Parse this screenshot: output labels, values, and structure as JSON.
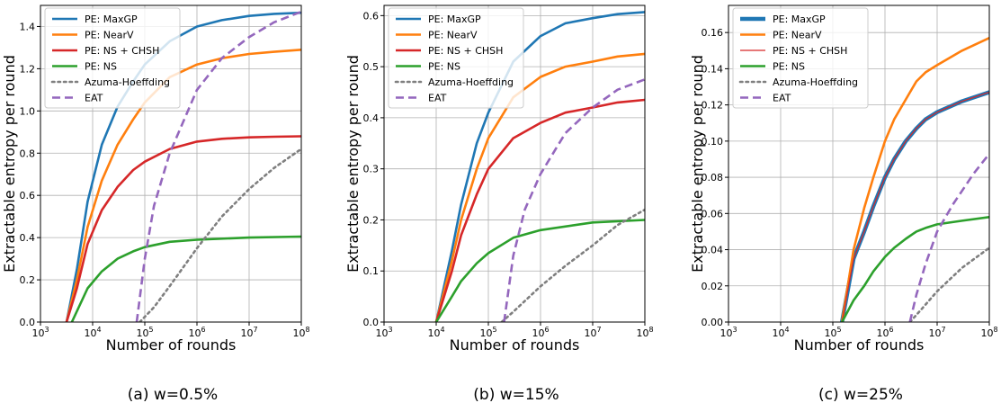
{
  "chart_data": [
    {
      "type": "line",
      "caption": "(a) w=0.5%",
      "xlabel": "Number of rounds",
      "ylabel": "Extractable entropy per round",
      "xscale": "log",
      "xlim": [
        1000,
        100000000
      ],
      "ylim": [
        0,
        1.5
      ],
      "xticks": [
        1000,
        10000,
        100000,
        1000000,
        10000000,
        100000000
      ],
      "xtick_labels": [
        {
          "base": "10",
          "exp": "3"
        },
        {
          "base": "10",
          "exp": "4"
        },
        {
          "base": "10",
          "exp": "5"
        },
        {
          "base": "10",
          "exp": "6"
        },
        {
          "base": "10",
          "exp": "7"
        },
        {
          "base": "10",
          "exp": "8"
        }
      ],
      "yticks": [
        0,
        0.2,
        0.4,
        0.6,
        0.8,
        1.0,
        1.2,
        1.4
      ],
      "ytick_labels": [
        "0.0",
        "0.2",
        "0.4",
        "0.6",
        "0.8",
        "1.0",
        "1.2",
        "1.4"
      ],
      "grid": true,
      "legend_position": "top-left",
      "series": [
        {
          "name": "PE: MaxGP",
          "color": "#1f77b4",
          "style": "solid",
          "x": [
            3162,
            5000,
            8000,
            15000,
            30000,
            60000,
            100000,
            300000,
            1000000,
            3000000,
            10000000,
            30000000,
            100000000
          ],
          "y": [
            0,
            0.25,
            0.57,
            0.84,
            1.02,
            1.14,
            1.22,
            1.33,
            1.4,
            1.43,
            1.45,
            1.46,
            1.465
          ]
        },
        {
          "name": "PE: NearV",
          "color": "#ff7f0e",
          "style": "solid",
          "x": [
            3162,
            5000,
            8000,
            15000,
            30000,
            60000,
            100000,
            300000,
            1000000,
            3000000,
            10000000,
            30000000,
            100000000
          ],
          "y": [
            0,
            0.2,
            0.45,
            0.67,
            0.84,
            0.96,
            1.04,
            1.16,
            1.22,
            1.25,
            1.27,
            1.28,
            1.29
          ]
        },
        {
          "name": "PE: NS + CHSH",
          "color": "#d62728",
          "style": "solid",
          "x": [
            3162,
            5000,
            8000,
            15000,
            30000,
            60000,
            100000,
            300000,
            1000000,
            3000000,
            10000000,
            30000000,
            100000000
          ],
          "y": [
            0,
            0.16,
            0.37,
            0.53,
            0.64,
            0.72,
            0.76,
            0.82,
            0.855,
            0.868,
            0.875,
            0.878,
            0.88
          ]
        },
        {
          "name": "PE: NS",
          "color": "#2ca02c",
          "style": "solid",
          "x": [
            4000,
            8000,
            15000,
            30000,
            60000,
            100000,
            300000,
            1000000,
            10000000,
            100000000
          ],
          "y": [
            0,
            0.16,
            0.24,
            0.3,
            0.335,
            0.355,
            0.38,
            0.39,
            0.4,
            0.405
          ]
        },
        {
          "name": "Azuma-Hoeffding",
          "color": "#7f7f7f",
          "style": "dotted",
          "x": [
            80000,
            150000,
            300000,
            1000000,
            3000000,
            10000000,
            30000000,
            100000000
          ],
          "y": [
            0,
            0.07,
            0.17,
            0.35,
            0.5,
            0.63,
            0.73,
            0.82
          ]
        },
        {
          "name": "EAT",
          "color": "#9467bd",
          "style": "dashed",
          "x": [
            70000,
            100000,
            150000,
            300000,
            1000000,
            3000000,
            10000000,
            30000000,
            100000000
          ],
          "y": [
            0,
            0.3,
            0.55,
            0.8,
            1.1,
            1.25,
            1.35,
            1.42,
            1.47
          ]
        }
      ]
    },
    {
      "type": "line",
      "caption": "(b) w=15%",
      "xlabel": "Number of rounds",
      "ylabel": "Extractable entropy per round",
      "xscale": "log",
      "xlim": [
        1000,
        100000000
      ],
      "ylim": [
        0,
        0.62
      ],
      "xticks": [
        1000,
        10000,
        100000,
        1000000,
        10000000,
        100000000
      ],
      "xtick_labels": [
        {
          "base": "10",
          "exp": "3"
        },
        {
          "base": "10",
          "exp": "4"
        },
        {
          "base": "10",
          "exp": "5"
        },
        {
          "base": "10",
          "exp": "6"
        },
        {
          "base": "10",
          "exp": "7"
        },
        {
          "base": "10",
          "exp": "8"
        }
      ],
      "yticks": [
        0,
        0.1,
        0.2,
        0.3,
        0.4,
        0.5,
        0.6
      ],
      "ytick_labels": [
        "0.0",
        "0.1",
        "0.2",
        "0.3",
        "0.4",
        "0.5",
        "0.6"
      ],
      "grid": true,
      "legend_position": "top-left",
      "series": [
        {
          "name": "PE: MaxGP",
          "color": "#1f77b4",
          "style": "solid",
          "x": [
            10000,
            20000,
            30000,
            60000,
            100000,
            300000,
            1000000,
            3000000,
            10000000,
            30000000,
            100000000
          ],
          "y": [
            0,
            0.14,
            0.23,
            0.35,
            0.41,
            0.51,
            0.56,
            0.585,
            0.595,
            0.603,
            0.607
          ]
        },
        {
          "name": "PE: NearV",
          "color": "#ff7f0e",
          "style": "solid",
          "x": [
            10000,
            20000,
            30000,
            60000,
            100000,
            300000,
            1000000,
            3000000,
            10000000,
            30000000,
            100000000
          ],
          "y": [
            0,
            0.12,
            0.2,
            0.3,
            0.36,
            0.44,
            0.48,
            0.5,
            0.51,
            0.52,
            0.525
          ]
        },
        {
          "name": "PE: NS + CHSH",
          "color": "#d62728",
          "style": "solid",
          "x": [
            10000,
            20000,
            30000,
            60000,
            100000,
            300000,
            1000000,
            3000000,
            10000000,
            30000000,
            100000000
          ],
          "y": [
            0,
            0.1,
            0.17,
            0.25,
            0.3,
            0.36,
            0.39,
            0.41,
            0.42,
            0.43,
            0.435
          ]
        },
        {
          "name": "PE: NS",
          "color": "#2ca02c",
          "style": "solid",
          "x": [
            10000,
            20000,
            30000,
            60000,
            100000,
            300000,
            1000000,
            10000000,
            100000000
          ],
          "y": [
            0,
            0.05,
            0.08,
            0.115,
            0.135,
            0.165,
            0.18,
            0.195,
            0.2
          ]
        },
        {
          "name": "Azuma-Hoeffding",
          "color": "#7f7f7f",
          "style": "dotted",
          "x": [
            180000,
            300000,
            1000000,
            3000000,
            10000000,
            30000000,
            100000000
          ],
          "y": [
            0,
            0.02,
            0.07,
            0.11,
            0.15,
            0.19,
            0.22
          ]
        },
        {
          "name": "EAT",
          "color": "#9467bd",
          "style": "dashed",
          "x": [
            200000,
            300000,
            500000,
            1000000,
            3000000,
            10000000,
            30000000,
            100000000
          ],
          "y": [
            0,
            0.13,
            0.22,
            0.29,
            0.37,
            0.42,
            0.455,
            0.475
          ]
        }
      ]
    },
    {
      "type": "line",
      "caption": "(c) w=25%",
      "xlabel": "Number of rounds",
      "ylabel": "Extractable entropy per round",
      "xscale": "log",
      "xlim": [
        1000,
        100000000
      ],
      "ylim": [
        0,
        0.175
      ],
      "xticks": [
        1000,
        10000,
        100000,
        1000000,
        10000000,
        100000000
      ],
      "xtick_labels": [
        {
          "base": "10",
          "exp": "3"
        },
        {
          "base": "10",
          "exp": "4"
        },
        {
          "base": "10",
          "exp": "5"
        },
        {
          "base": "10",
          "exp": "6"
        },
        {
          "base": "10",
          "exp": "7"
        },
        {
          "base": "10",
          "exp": "8"
        }
      ],
      "yticks": [
        0,
        0.02,
        0.04,
        0.06,
        0.08,
        0.1,
        0.12,
        0.14,
        0.16
      ],
      "ytick_labels": [
        "0.00",
        "0.02",
        "0.04",
        "0.06",
        "0.08",
        "0.10",
        "0.12",
        "0.14",
        "0.16"
      ],
      "grid": true,
      "legend_position": "top-left",
      "series": [
        {
          "name": "PE: MaxGP",
          "color": "#1f77b4",
          "style": "solid-thick",
          "x": [
            150000,
            250000,
            400000,
            600000,
            1000000,
            1500000,
            2500000,
            4000000,
            6000000,
            10000000,
            30000000,
            100000000
          ],
          "y": [
            0,
            0.035,
            0.05,
            0.064,
            0.08,
            0.09,
            0.1,
            0.107,
            0.112,
            0.116,
            0.122,
            0.127
          ]
        },
        {
          "name": "PE: NearV",
          "color": "#ff7f0e",
          "style": "solid",
          "x": [
            150000,
            250000,
            400000,
            600000,
            1000000,
            1500000,
            2500000,
            4000000,
            6000000,
            10000000,
            30000000,
            100000000
          ],
          "y": [
            0,
            0.04,
            0.063,
            0.08,
            0.1,
            0.112,
            0.123,
            0.133,
            0.138,
            0.142,
            0.15,
            0.157
          ]
        },
        {
          "name": "PE: NS + CHSH",
          "color": "#d62728",
          "style": "solid-thin",
          "x": [
            150000,
            250000,
            400000,
            600000,
            1000000,
            1500000,
            2500000,
            4000000,
            6000000,
            10000000,
            30000000,
            100000000
          ],
          "y": [
            0,
            0.035,
            0.05,
            0.064,
            0.08,
            0.09,
            0.1,
            0.107,
            0.112,
            0.116,
            0.122,
            0.127
          ]
        },
        {
          "name": "PE: NS",
          "color": "#2ca02c",
          "style": "solid",
          "x": [
            150000,
            250000,
            400000,
            600000,
            1000000,
            1500000,
            2500000,
            4000000,
            6000000,
            10000000,
            30000000,
            100000000
          ],
          "y": [
            0,
            0.012,
            0.02,
            0.028,
            0.036,
            0.041,
            0.046,
            0.05,
            0.052,
            0.054,
            0.056,
            0.058
          ]
        },
        {
          "name": "Azuma-Hoeffding",
          "color": "#7f7f7f",
          "style": "dotted",
          "x": [
            3000000,
            5000000,
            10000000,
            30000000,
            100000000
          ],
          "y": [
            0,
            0.007,
            0.017,
            0.03,
            0.041
          ]
        },
        {
          "name": "EAT",
          "color": "#9467bd",
          "style": "dashed",
          "x": [
            3000000,
            4000000,
            6000000,
            10000000,
            20000000,
            50000000,
            100000000
          ],
          "y": [
            0,
            0.015,
            0.032,
            0.05,
            0.065,
            0.082,
            0.093
          ]
        }
      ]
    }
  ]
}
